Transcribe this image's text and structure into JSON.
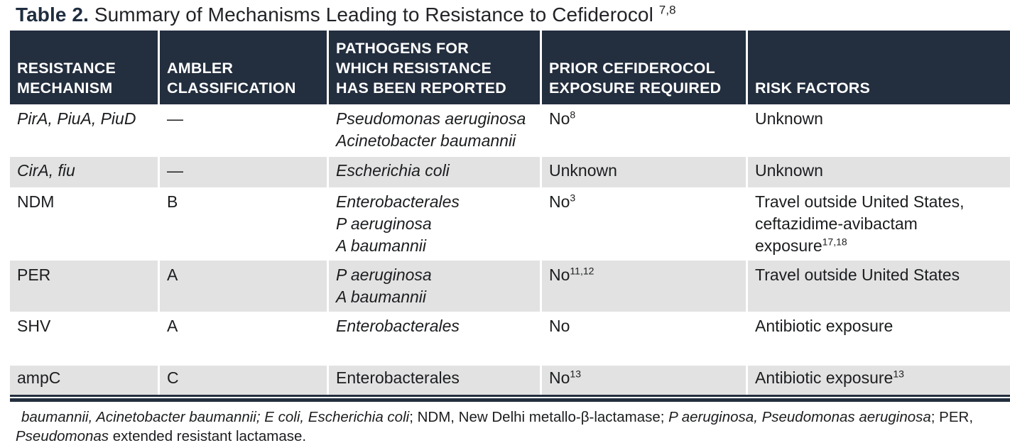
{
  "title": {
    "label": "Table 2.",
    "text": " Summary of Mechanisms Leading to Resistance to Cefiderocol ",
    "superscript": "7,8"
  },
  "table": {
    "headers": [
      "RESISTANCE\nMECHANISM",
      "AMBLER\nCLASSIFICATION",
      "PATHOGENS FOR\nWHICH RESISTANCE\nHAS BEEN REPORTED",
      "PRIOR CEFIDEROCOL\nEXPOSURE REQUIRED",
      "RISK FACTORS"
    ],
    "rows": [
      {
        "mechanism": "PirA, PiuA, PiuD",
        "ambler": "—",
        "pathogens": [
          "Pseudomonas aeruginosa",
          "Acinetobacter baumannii"
        ],
        "exposure": "No",
        "exposure_sup": "8",
        "risk": "Unknown",
        "risk_sup": ""
      },
      {
        "mechanism": "CirA, fiu",
        "ambler": "—",
        "pathogens": [
          "Escherichia coli"
        ],
        "exposure": "Unknown",
        "exposure_sup": "",
        "risk": "Unknown",
        "risk_sup": ""
      },
      {
        "mechanism": "NDM",
        "ambler": "B",
        "pathogens": [
          "Enterobacterales",
          "P aeruginosa",
          "A baumannii"
        ],
        "exposure": "No",
        "exposure_sup": "3",
        "risk": "Travel outside United States,\nceftazidime-avibactam\nexposure",
        "risk_sup": "17,18"
      },
      {
        "mechanism": "PER",
        "ambler": "A",
        "pathogens": [
          "P aeruginosa",
          "A baumannii"
        ],
        "exposure": "No",
        "exposure_sup": "11,12",
        "risk": "Travel outside United States",
        "risk_sup": ""
      },
      {
        "mechanism": "SHV",
        "ambler": "A",
        "pathogens": [
          "Enterobacterales"
        ],
        "exposure": "No",
        "exposure_sup": "",
        "risk": "Antibiotic exposure",
        "risk_sup": ""
      },
      {
        "mechanism": "ampC",
        "ambler": "C",
        "pathogens": [
          "Enterobacterales"
        ],
        "exposure": "No",
        "exposure_sup": "13",
        "risk": "Antibiotic exposure",
        "risk_sup": "13"
      }
    ]
  },
  "footnote": {
    "line1": [
      {
        "text": "baumannii, Acinetobacter baumannii; E coli, Escherichia coli",
        "italic": true
      },
      {
        "text": "; NDM, New Delhi metallo-β-lactamase; ",
        "italic": false
      },
      {
        "text": "P aeruginosa, Pseudomonas aeruginosa",
        "italic": true
      },
      {
        "text": "; PER,",
        "italic": false
      }
    ],
    "line2": [
      {
        "text": "Pseudomonas",
        "italic": true
      },
      {
        "text": " extended resistant lactamase.",
        "italic": false
      }
    ]
  }
}
